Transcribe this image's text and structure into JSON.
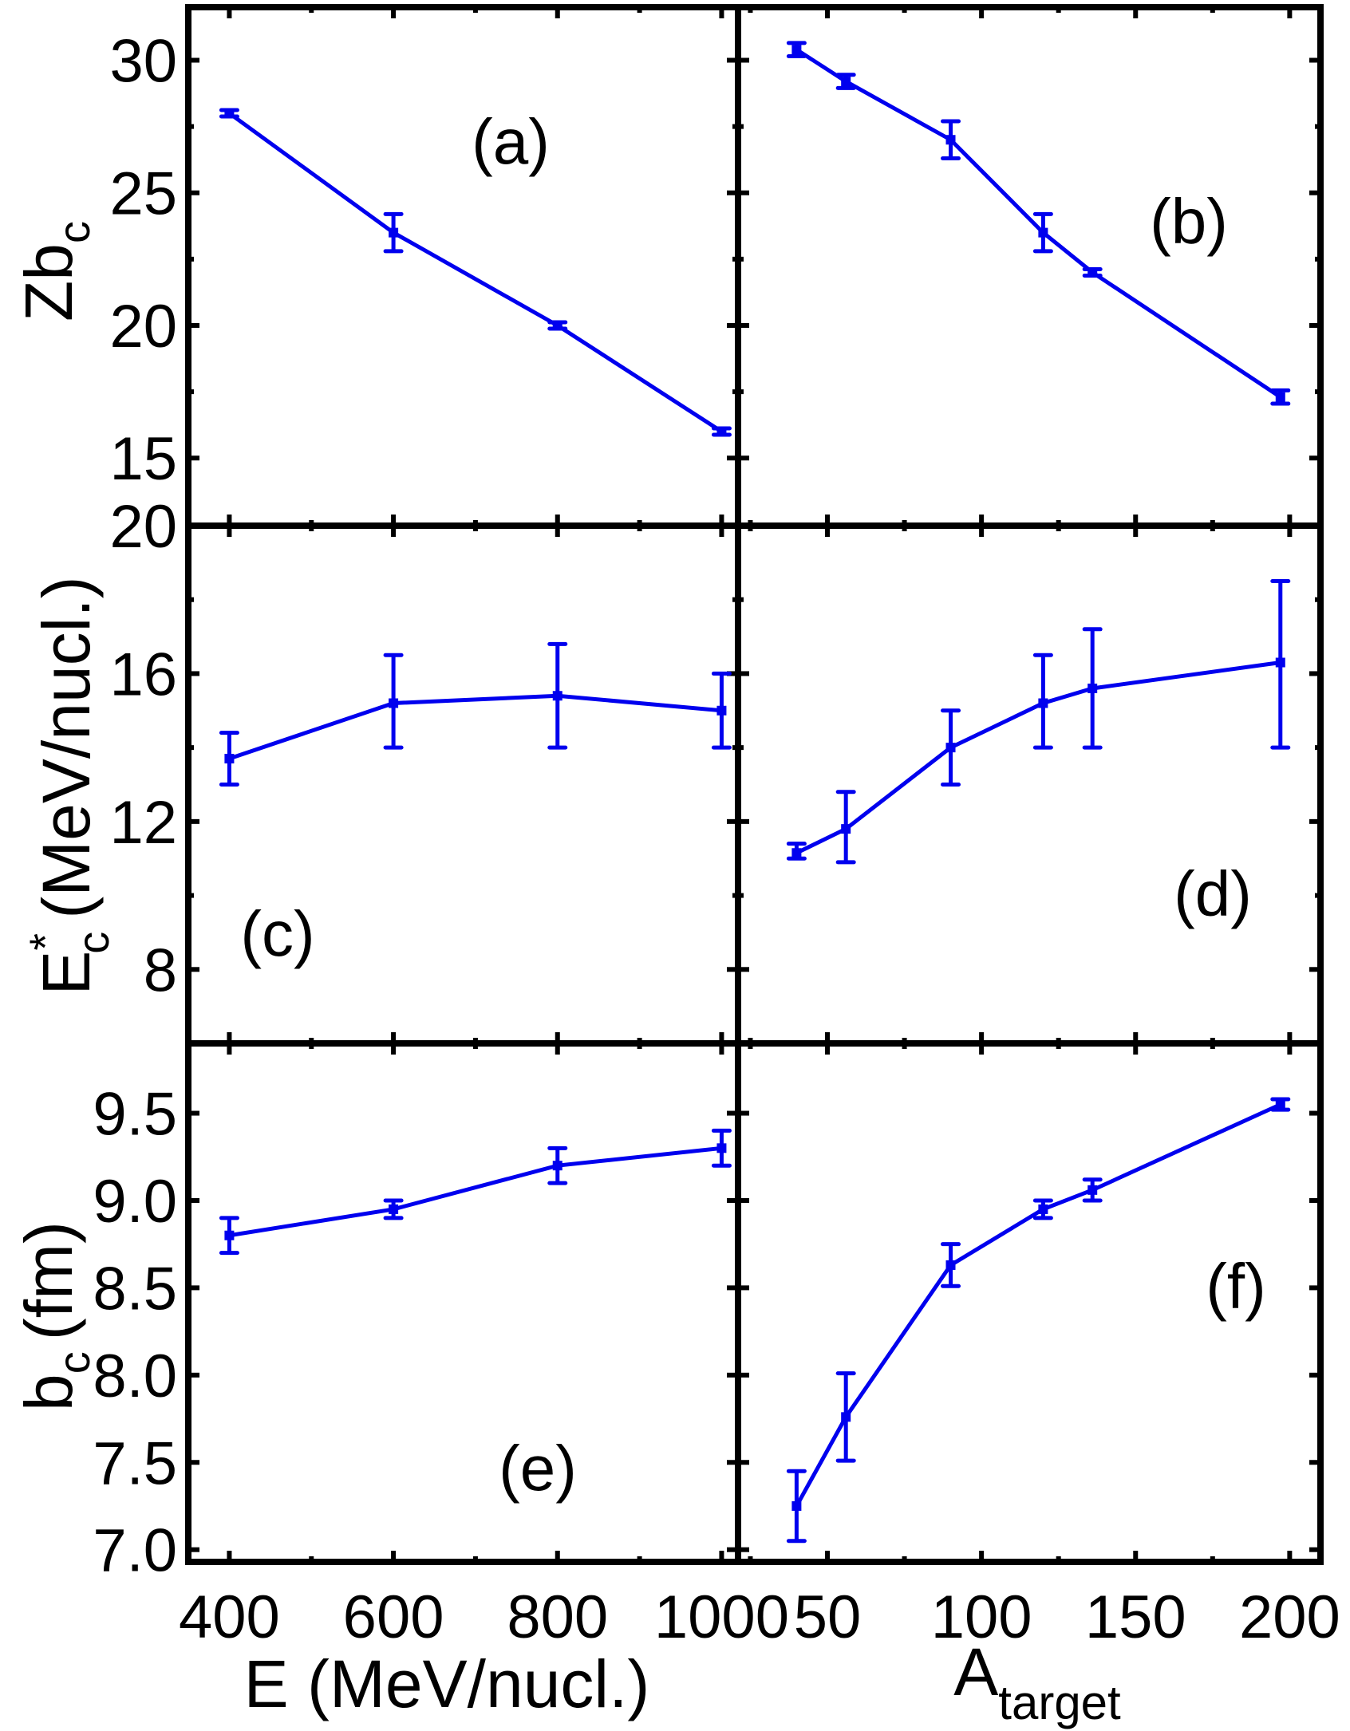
{
  "chart_data": [
    {
      "type": "line",
      "panel_label": "(a)",
      "xlabel": "",
      "ylabel": "Zb",
      "ylabel_sub": "c",
      "x": [
        400,
        600,
        800,
        1000
      ],
      "y": [
        28.0,
        23.5,
        20.0,
        16.0
      ],
      "yerr": [
        0.12,
        0.7,
        0.12,
        0.12
      ],
      "xlim": [
        350,
        1020
      ],
      "ylim": [
        12.45,
        32.0
      ],
      "xticks": [
        400,
        600,
        800,
        1000
      ],
      "xminor": [
        500,
        700,
        900
      ],
      "yticks": [
        15,
        20,
        25,
        30
      ],
      "ytick_labels": [
        "15",
        "20",
        "25",
        "30"
      ],
      "yminor": [
        17.5,
        22.5,
        27.5
      ],
      "color": "#0000ee"
    },
    {
      "type": "line",
      "panel_label": "(b)",
      "xlabel": "",
      "ylabel": "",
      "x": [
        40,
        56,
        90,
        120,
        136,
        197
      ],
      "y": [
        30.4,
        29.2,
        27.0,
        23.5,
        22.0,
        17.3
      ],
      "yerr": [
        0.25,
        0.25,
        0.7,
        0.7,
        0.12,
        0.25
      ],
      "xlim": [
        21,
        210
      ],
      "ylim": [
        12.45,
        32.0
      ],
      "xticks": [
        50,
        100,
        150,
        200
      ],
      "xminor": [
        25,
        75,
        125,
        175
      ],
      "yticks": [
        15,
        20,
        25,
        30
      ],
      "yminor": [
        17.5,
        22.5,
        27.5
      ],
      "color": "#0000ee"
    },
    {
      "type": "line",
      "panel_label": "(c)",
      "xlabel": "",
      "ylabel": "E",
      "ylabel_sup": "*",
      "ylabel_sub": "c",
      "ylabel_unit": "(MeV/nucl.)",
      "x": [
        400,
        600,
        800,
        1000
      ],
      "y": [
        13.7,
        15.2,
        15.4,
        15.0
      ],
      "yerr_low": [
        0.7,
        1.2,
        1.4,
        1.0
      ],
      "yerr_high": [
        0.7,
        1.3,
        1.4,
        1.0
      ],
      "xlim": [
        350,
        1020
      ],
      "ylim": [
        6,
        20
      ],
      "xticks": [
        400,
        600,
        800,
        1000
      ],
      "xminor": [
        500,
        700,
        900
      ],
      "yticks": [
        8,
        12,
        16,
        20
      ],
      "ytick_labels": [
        "8",
        "12",
        "16",
        "20"
      ],
      "yminor": [
        10,
        14,
        18
      ],
      "color": "#0000ee"
    },
    {
      "type": "line",
      "panel_label": "(d)",
      "xlabel": "",
      "ylabel": "",
      "x": [
        40,
        56,
        90,
        120,
        136,
        197
      ],
      "y": [
        11.15,
        11.8,
        14.0,
        15.2,
        15.6,
        16.3
      ],
      "yerr_low": [
        0.15,
        0.9,
        1.0,
        1.2,
        1.6,
        2.3
      ],
      "yerr_high": [
        0.25,
        1.0,
        1.0,
        1.3,
        1.6,
        2.2
      ],
      "xlim": [
        21,
        210
      ],
      "ylim": [
        6,
        20
      ],
      "xticks": [
        50,
        100,
        150,
        200
      ],
      "xminor": [
        25,
        75,
        125,
        175
      ],
      "yticks": [
        8,
        12,
        16,
        20
      ],
      "yminor": [
        10,
        14,
        18
      ],
      "color": "#0000ee"
    },
    {
      "type": "line",
      "panel_label": "(e)",
      "xlabel": "E (MeV/nucl.)",
      "ylabel": "b",
      "ylabel_sub": "c",
      "ylabel_unit": "(fm)",
      "x": [
        400,
        600,
        800,
        1000
      ],
      "y": [
        8.8,
        8.95,
        9.2,
        9.3
      ],
      "yerr": [
        0.1,
        0.05,
        0.1,
        0.1
      ],
      "xlim": [
        350,
        1020
      ],
      "ylim": [
        6.93,
        9.9
      ],
      "xticks": [
        400,
        600,
        800,
        1000
      ],
      "xtick_labels": [
        "400",
        "600",
        "800",
        "1000"
      ],
      "xminor": [
        500,
        700,
        900
      ],
      "yticks": [
        7.0,
        7.5,
        8.0,
        8.5,
        9.0,
        9.5
      ],
      "ytick_labels": [
        "7.0",
        "7.5",
        "8.0",
        "8.5",
        "9.0",
        "9.5"
      ],
      "yminor": [],
      "color": "#0000ee"
    },
    {
      "type": "line",
      "panel_label": "(f)",
      "xlabel": "A",
      "xlabel_sub": "target",
      "ylabel": "",
      "x": [
        40,
        56,
        90,
        120,
        136,
        197
      ],
      "y": [
        7.25,
        7.76,
        8.63,
        8.95,
        9.06,
        9.55
      ],
      "yerr": [
        0.2,
        0.25,
        0.12,
        0.05,
        0.06,
        0.03
      ],
      "xlim": [
        21,
        210
      ],
      "ylim": [
        6.93,
        9.9
      ],
      "xticks": [
        50,
        100,
        150,
        200
      ],
      "xtick_labels": [
        "50",
        "100",
        "150",
        "200"
      ],
      "xminor": [
        25,
        75,
        125,
        175
      ],
      "yticks": [
        7.0,
        7.5,
        8.0,
        8.5,
        9.0,
        9.5
      ],
      "yminor": [],
      "color": "#0000ee"
    }
  ]
}
